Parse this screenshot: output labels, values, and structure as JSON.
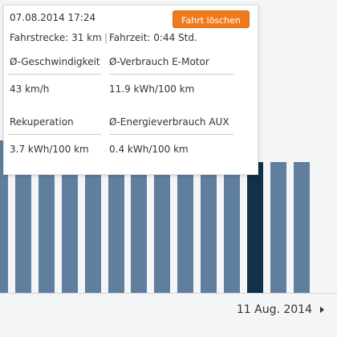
{
  "trip_popup": {
    "datetime": "07.08.2014 17:24",
    "delete_button": "Fahrt löschen",
    "distance_text": "Fahrstrecke: 31 km",
    "separator": "|",
    "duration_text": "Fahrzeit: 0:44 Std.",
    "metrics": [
      {
        "label": "Ø-Geschwindigkeit",
        "value": "43 km/h"
      },
      {
        "label": "Ø-Verbrauch E-Motor",
        "value": "11.9 kWh/100 km"
      },
      {
        "label": "Rekuperation",
        "value": "3.7 kWh/100 km"
      },
      {
        "label": "Ø-Energieverbrauch AUX",
        "value": "0.4 kWh/100 km"
      }
    ]
  },
  "date_nav": {
    "current_date": "11 Aug. 2014",
    "next_icon": "chevron-right-icon"
  },
  "chart_data": {
    "type": "bar",
    "values": [
      7,
      6,
      6,
      6,
      6,
      6,
      6,
      6,
      6,
      6,
      6,
      6,
      6,
      6
    ],
    "selected_index": 11,
    "colors": {
      "bar": "#607f9e",
      "selected": "#123048",
      "accent": "#f07b1f"
    }
  }
}
